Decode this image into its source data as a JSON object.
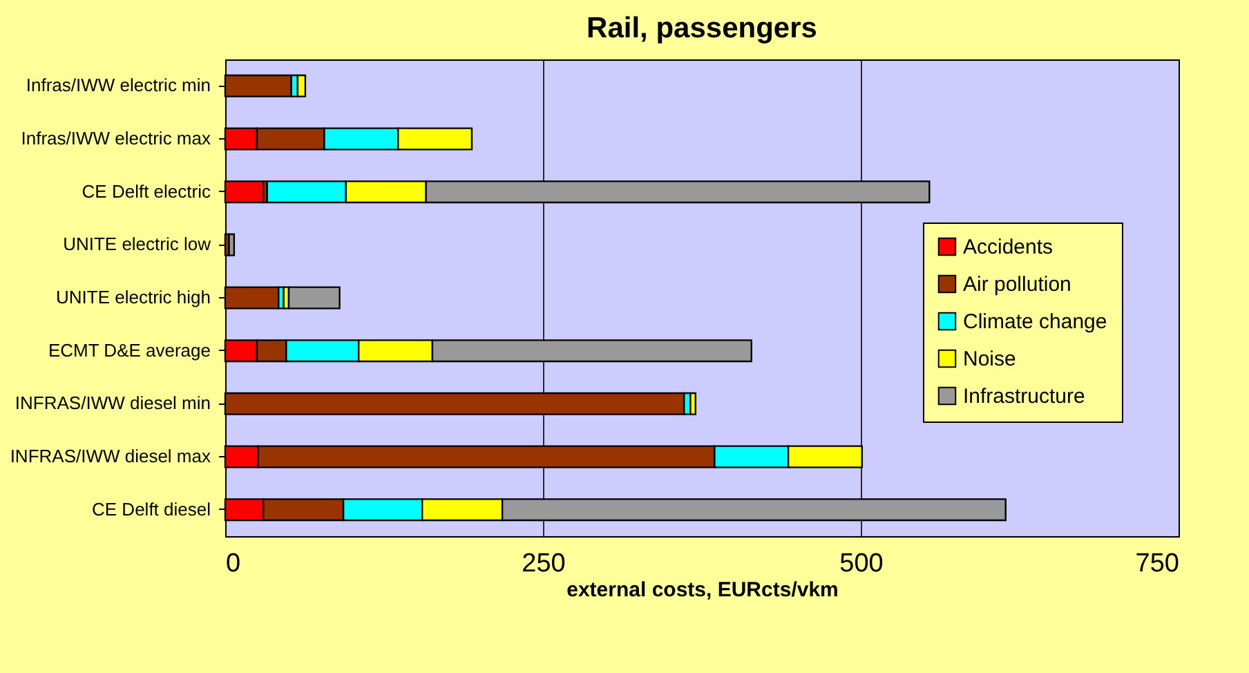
{
  "chart_data": {
    "type": "bar",
    "orientation": "horizontal",
    "stacked": true,
    "title": "Rail, passengers",
    "xlabel": "external costs, EURcts/vkm",
    "categories": [
      "Infras/IWW  electric min",
      "Infras/IWW  electric max",
      "CE Delft electric",
      "UNITE electric low",
      "UNITE electric high",
      "ECMT D&E average",
      "INFRAS/IWW diesel min",
      "INFRAS/IWW diesel max",
      "CE Delft diesel"
    ],
    "series": [
      {
        "name": "Accidents",
        "color": "#ff0000",
        "values": [
          null,
          25,
          30,
          null,
          null,
          25,
          null,
          26,
          30
        ]
      },
      {
        "name": "Air pollution",
        "color": "#993300",
        "values": [
          52,
          53,
          3,
          3,
          42,
          23,
          361,
          359,
          63
        ]
      },
      {
        "name": "Climate change",
        "color": "#00ffff",
        "values": [
          5,
          58,
          62,
          null,
          4,
          57,
          5,
          58,
          62
        ]
      },
      {
        "name": "Noise",
        "color": "#ffff00",
        "values": [
          6,
          58,
          63,
          null,
          4,
          58,
          4,
          58,
          63
        ]
      },
      {
        "name": "Infrastructure",
        "color": "#999999",
        "values": [
          null,
          null,
          396,
          4,
          40,
          251,
          null,
          null,
          396
        ]
      }
    ],
    "xlim": [
      0,
      750
    ],
    "xticks": [
      0,
      250,
      500,
      750
    ],
    "grid": "x",
    "legend": "right"
  }
}
